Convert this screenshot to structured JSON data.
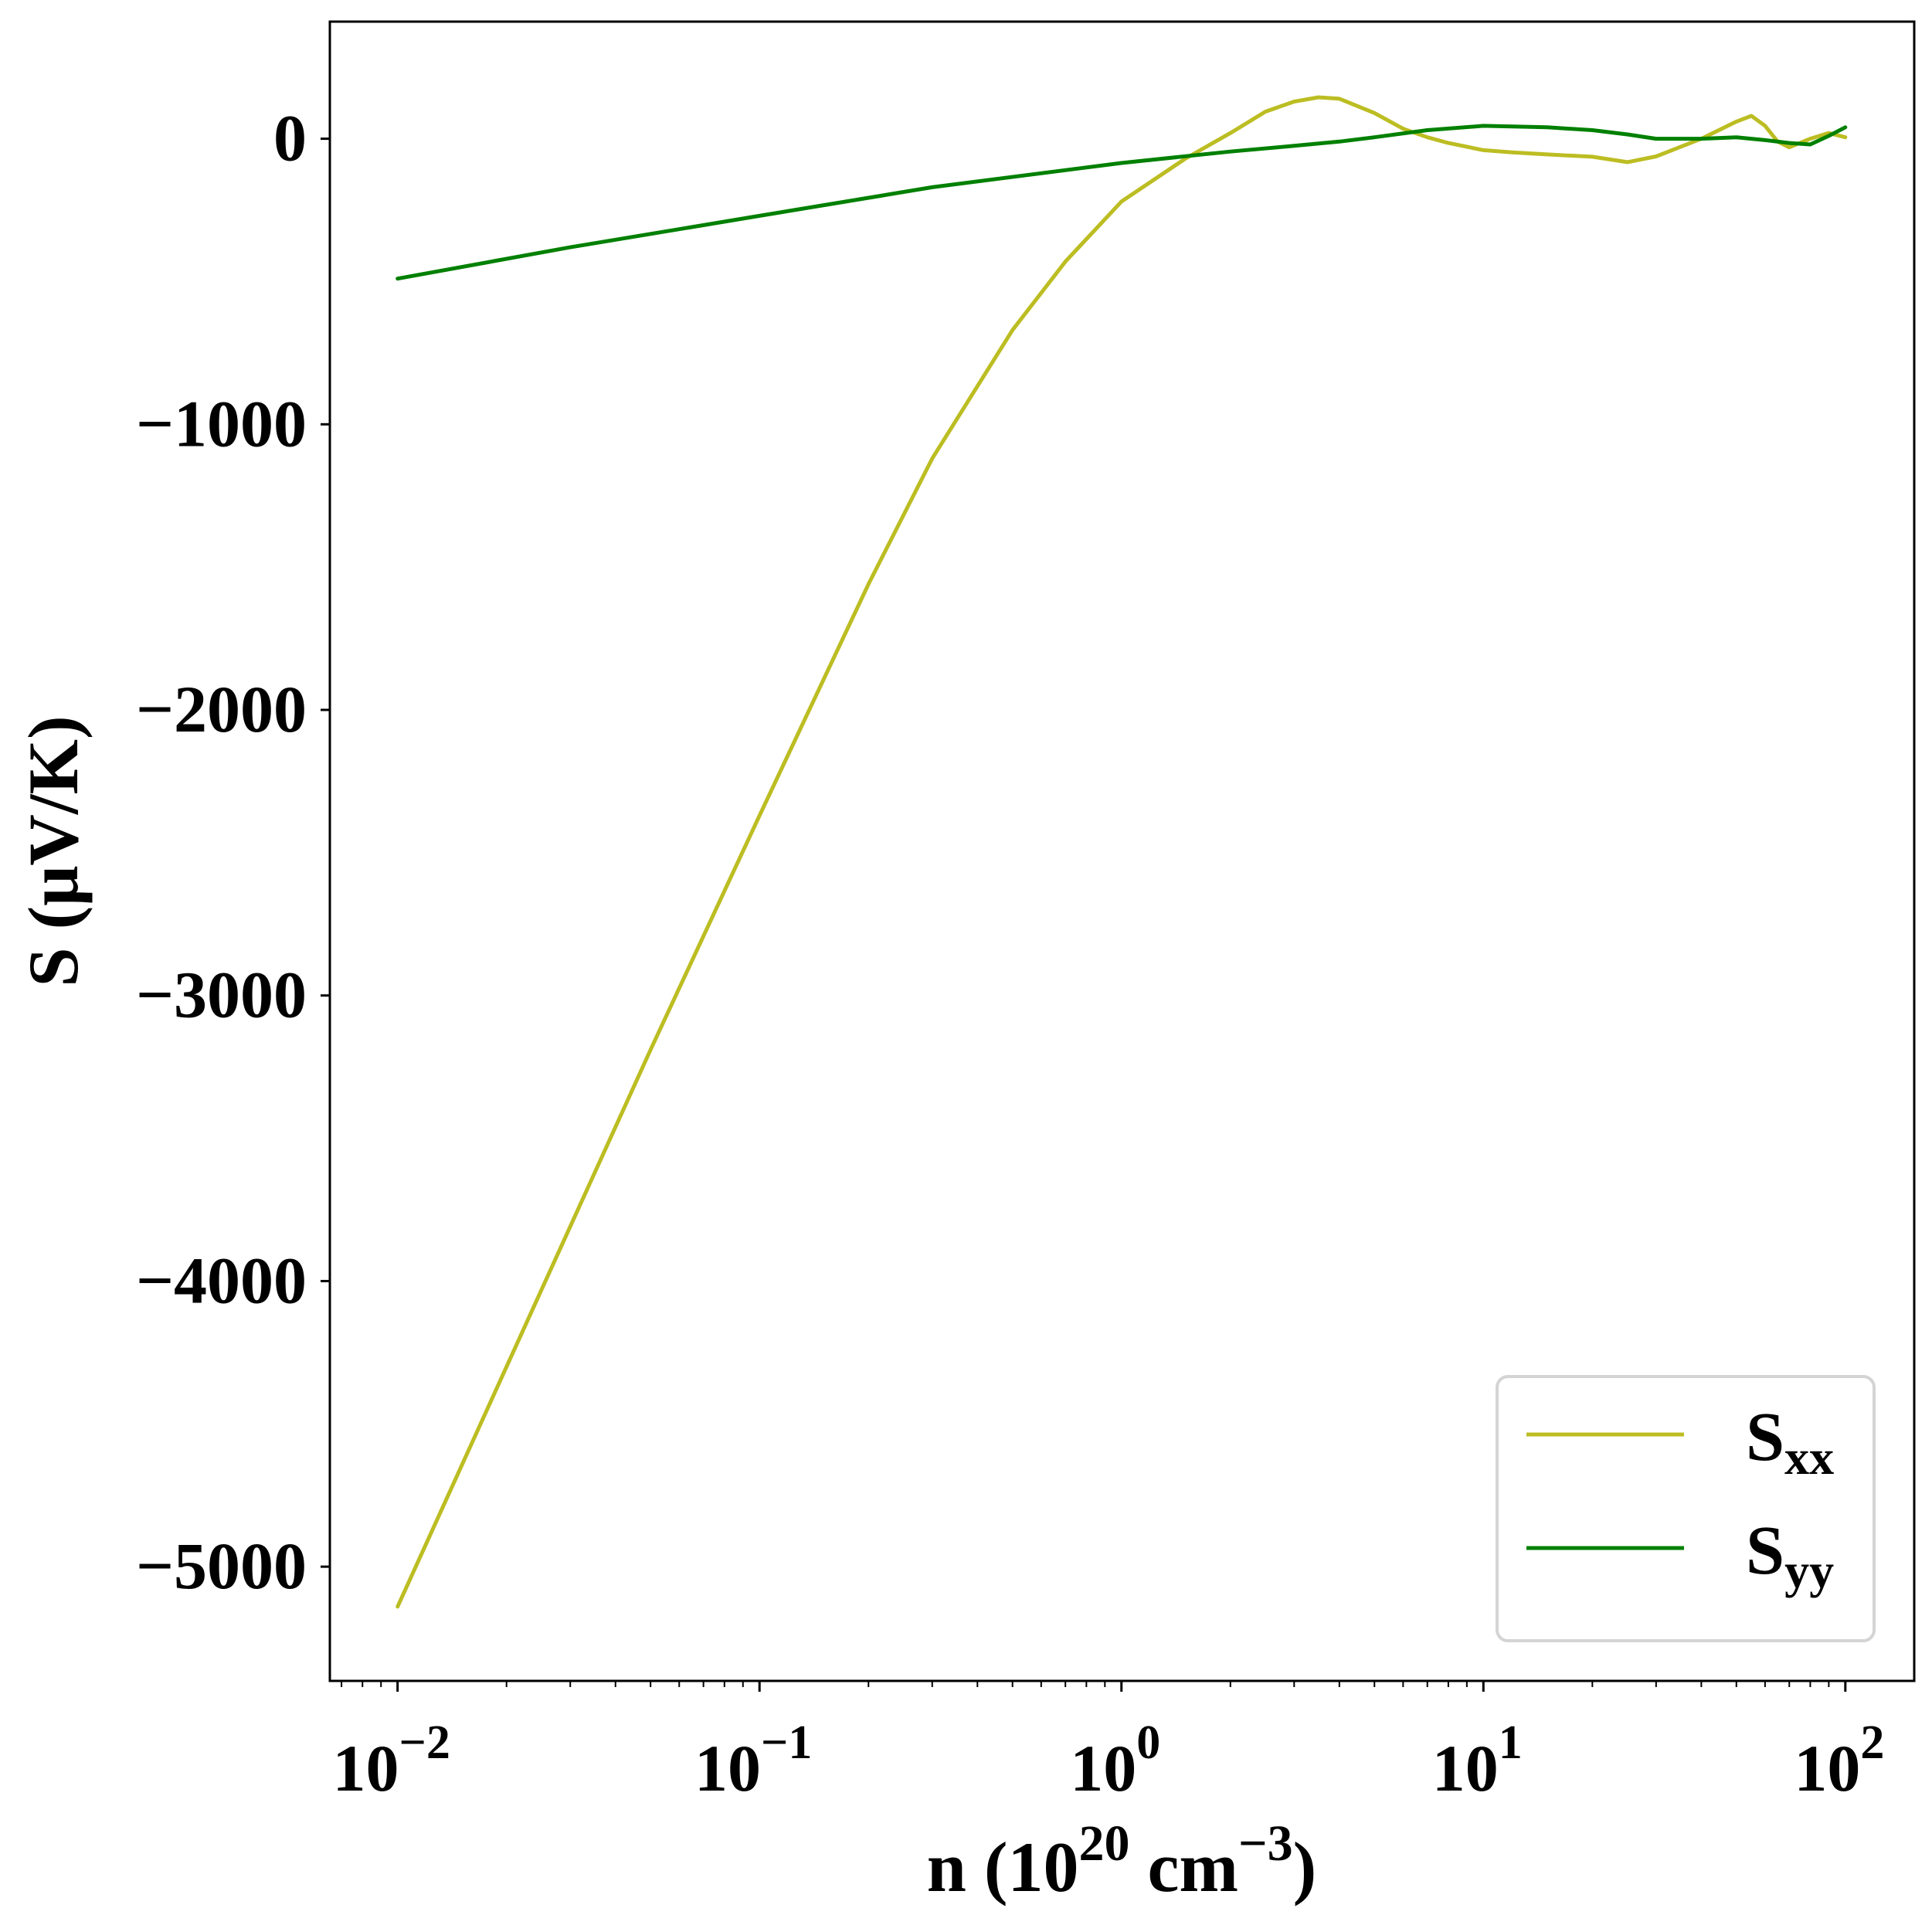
{
  "chart_data": {
    "type": "line",
    "xscale": "log",
    "xlim": [
      0.0065,
      155
    ],
    "ylim": [
      -5400,
      410
    ],
    "xlabel": {
      "main": "n (10",
      "exp": "20",
      "unit": " cm",
      "unit_exp": "−3",
      "close": ")"
    },
    "ylabel": "S (μV/K)",
    "xticks": [
      {
        "value": 0.01,
        "base": "10",
        "exp": "−2"
      },
      {
        "value": 0.1,
        "base": "10",
        "exp": "−1"
      },
      {
        "value": 1,
        "base": "10",
        "exp": "0"
      },
      {
        "value": 10,
        "base": "10",
        "exp": "1"
      },
      {
        "value": 100,
        "base": "10",
        "exp": "2"
      }
    ],
    "yticks": [
      {
        "value": 0,
        "label": "0"
      },
      {
        "value": -1000,
        "label": "−1000"
      },
      {
        "value": -2000,
        "label": "−2000"
      },
      {
        "value": -3000,
        "label": "−3000"
      },
      {
        "value": -4000,
        "label": "−4000"
      },
      {
        "value": -5000,
        "label": "−5000"
      }
    ],
    "legend_position": "lower-right",
    "series": [
      {
        "name": "S",
        "sub": "xx",
        "color": "#bcbd22",
        "points": [
          [
            0.01,
            -5140
          ],
          [
            0.02,
            -4300
          ],
          [
            0.05,
            -3190
          ],
          [
            0.1,
            -2370
          ],
          [
            0.2,
            -1560
          ],
          [
            0.3,
            -1120
          ],
          [
            0.5,
            -670
          ],
          [
            0.7,
            -430
          ],
          [
            1.0,
            -220
          ],
          [
            1.5,
            -70
          ],
          [
            2.0,
            20
          ],
          [
            2.5,
            95
          ],
          [
            3.0,
            130
          ],
          [
            3.5,
            145
          ],
          [
            4.0,
            140
          ],
          [
            5.0,
            90
          ],
          [
            6.0,
            35
          ],
          [
            7.0,
            5
          ],
          [
            8.0,
            -15
          ],
          [
            10.0,
            -40
          ],
          [
            12.0,
            -48
          ],
          [
            15.0,
            -55
          ],
          [
            20.0,
            -63
          ],
          [
            25.0,
            -82
          ],
          [
            30.0,
            -62
          ],
          [
            40.0,
            0
          ],
          [
            50.0,
            60
          ],
          [
            55.0,
            80
          ],
          [
            60.0,
            45
          ],
          [
            65.0,
            -10
          ],
          [
            70.0,
            -30
          ],
          [
            80.0,
            0
          ],
          [
            90.0,
            20
          ],
          [
            100.0,
            5
          ]
        ]
      },
      {
        "name": "S",
        "sub": "yy",
        "color": "#008000",
        "points": [
          [
            0.01,
            -490
          ],
          [
            0.03,
            -380
          ],
          [
            0.1,
            -270
          ],
          [
            0.3,
            -170
          ],
          [
            1.0,
            -85
          ],
          [
            2.0,
            -45
          ],
          [
            3.0,
            -25
          ],
          [
            4.0,
            -10
          ],
          [
            5.0,
            5
          ],
          [
            7.0,
            30
          ],
          [
            10.0,
            45
          ],
          [
            15.0,
            40
          ],
          [
            20.0,
            30
          ],
          [
            25.0,
            15
          ],
          [
            30.0,
            0
          ],
          [
            40.0,
            0
          ],
          [
            50.0,
            5
          ],
          [
            60.0,
            -5
          ],
          [
            70.0,
            -15
          ],
          [
            80.0,
            -20
          ],
          [
            90.0,
            10
          ],
          [
            100.0,
            40
          ]
        ]
      }
    ]
  }
}
